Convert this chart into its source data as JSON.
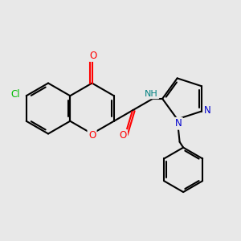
{
  "background_color": "#e8e8e8",
  "bond_color": "#000000",
  "bond_width": 1.5,
  "figsize": [
    3.0,
    3.0
  ],
  "dpi": 100,
  "xlim": [
    0,
    10
  ],
  "ylim": [
    0,
    10
  ],
  "colors": {
    "O": "#ff0000",
    "Cl": "#00bb00",
    "N": "#0000cd",
    "NH": "#008080"
  }
}
